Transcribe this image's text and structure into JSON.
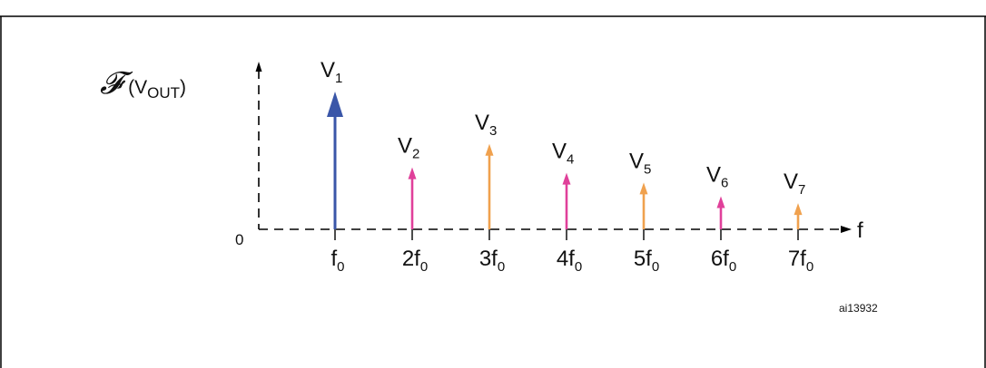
{
  "header_text": "",
  "diagram": {
    "y_axis_label": {
      "script": "𝓕",
      "open": "(V",
      "sub": "OUT",
      "close": ")"
    },
    "origin_label": "0",
    "x_axis_label": "f",
    "figure_id": "ai13932",
    "harmonics": [
      {
        "name": "V",
        "index": "1",
        "tick": "f",
        "tick_prefix": "",
        "tick_sub": "0",
        "magnitude": 1.0,
        "color": "#3a56a8",
        "bold": true
      },
      {
        "name": "V",
        "index": "2",
        "tick": "f",
        "tick_prefix": "2",
        "tick_sub": "0",
        "magnitude": 0.45,
        "color": "#e0409a",
        "bold": false
      },
      {
        "name": "V",
        "index": "3",
        "tick": "f",
        "tick_prefix": "3",
        "tick_sub": "0",
        "magnitude": 0.62,
        "color": "#f0a14e",
        "bold": false
      },
      {
        "name": "V",
        "index": "4",
        "tick": "f",
        "tick_prefix": "4",
        "tick_sub": "0",
        "magnitude": 0.41,
        "color": "#e0409a",
        "bold": false
      },
      {
        "name": "V",
        "index": "5",
        "tick": "f",
        "tick_prefix": "5",
        "tick_sub": "0",
        "magnitude": 0.34,
        "color": "#f0a14e",
        "bold": false
      },
      {
        "name": "V",
        "index": "6",
        "tick": "f",
        "tick_prefix": "6",
        "tick_sub": "0",
        "magnitude": 0.24,
        "color": "#e0409a",
        "bold": false
      },
      {
        "name": "V",
        "index": "7",
        "tick": "f",
        "tick_prefix": "7",
        "tick_sub": "0",
        "magnitude": 0.19,
        "color": "#f0a14e",
        "bold": false
      }
    ]
  }
}
